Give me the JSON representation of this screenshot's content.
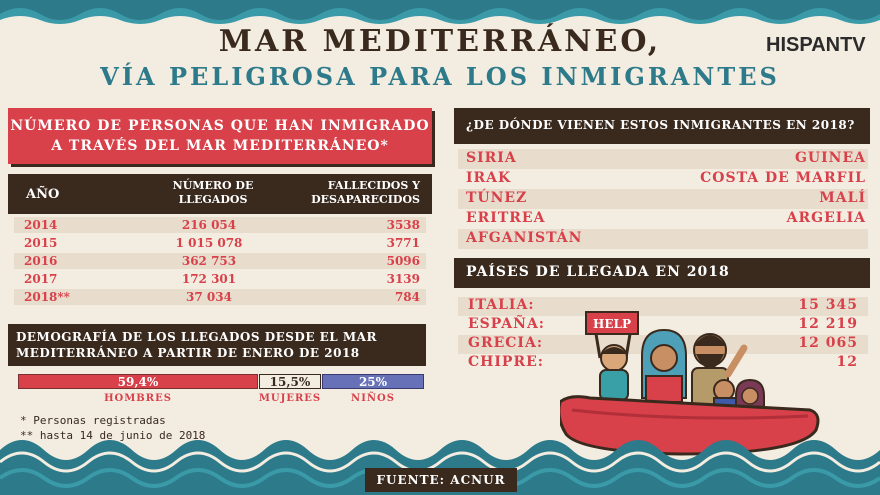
{
  "header": {
    "title_line1": "MAR MEDITERRÁNEO,",
    "title_line2": "VÍA PELIGROSA PARA LOS INMIGRANTES",
    "logo": "HISPANTV"
  },
  "immigration_table": {
    "heading": "NÚMERO DE PERSONAS QUE HAN INMIGRADO A TRAVÉS DEL MAR MEDITERRÁNEO*",
    "col_year": "AÑO",
    "col_arrivals": "NÚMERO DE LLEGADOS",
    "col_dead": "FALLECIDOS Y DESAPARECIDOS",
    "rows": [
      {
        "year": "2014",
        "arrivals": "216 054",
        "dead": "3538"
      },
      {
        "year": "2015",
        "arrivals": "1 015 078",
        "dead": "3771"
      },
      {
        "year": "2016",
        "arrivals": "362 753",
        "dead": "5096"
      },
      {
        "year": "2017",
        "arrivals": "172 301",
        "dead": "3139"
      },
      {
        "year": "2018**",
        "arrivals": "37 034",
        "dead": "784"
      }
    ]
  },
  "demographics": {
    "heading": "DEMOGRAFÍA DE LOS LLEGADOS DESDE EL MAR MEDITERRÁNEO A PARTIR DE ENERO DE 2018",
    "segments": [
      {
        "label": "HOMBRES",
        "value": "59,4%",
        "share": 0.594,
        "color": "#d8404a"
      },
      {
        "label": "MUJERES",
        "value": "15,5%",
        "share": 0.155,
        "color": "#f3ece0"
      },
      {
        "label": "NIÑOS",
        "value": "25%",
        "share": 0.25,
        "color": "#6671b8"
      }
    ]
  },
  "notes": {
    "note1": "* Personas registradas",
    "note2": "** hasta 14 de junio de 2018"
  },
  "origins": {
    "heading": "¿DE DÓNDE VIENEN ESTOS INMIGRANTES EN 2018?",
    "left": [
      "SIRIA",
      "IRAK",
      "TÚNEZ",
      "ERITREA",
      "AFGANISTÁN"
    ],
    "right": [
      "GUINEA",
      "COSTA DE MARFIL",
      "MALÍ",
      "ARGELIA"
    ]
  },
  "arrivals": {
    "heading": "PAÍSES DE LLEGADA EN 2018",
    "rows": [
      {
        "country": "ITALIA:",
        "value": "15 345"
      },
      {
        "country": "ESPAÑA:",
        "value": "12 219"
      },
      {
        "country": "GRECIA:",
        "value": "12 065"
      },
      {
        "country": "CHIPRE:",
        "value": "12"
      }
    ]
  },
  "illustration": {
    "sign_text": "HELP"
  },
  "source": "FUENTE: ACNUR",
  "colors": {
    "accent_red": "#d8404a",
    "dark_brown": "#3a2a1e",
    "teal": "#2c7a8a",
    "background": "#f3ece0",
    "kids_blue": "#6671b8"
  }
}
